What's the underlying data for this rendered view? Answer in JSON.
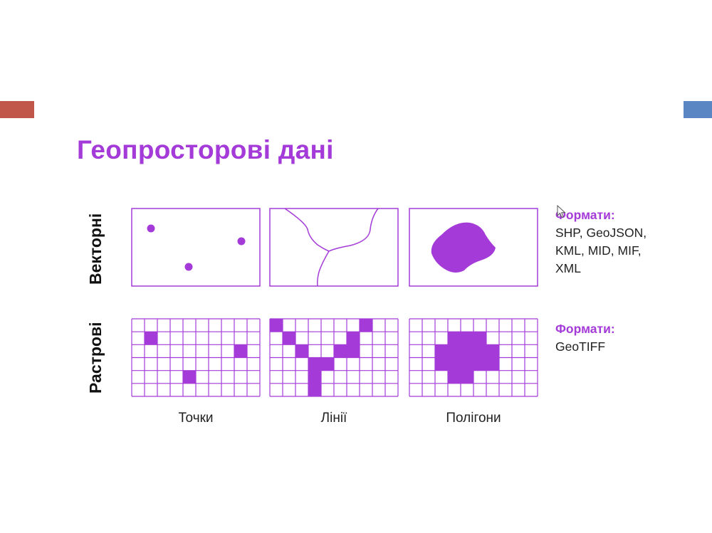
{
  "slide": {
    "title": "Геопросторові дані",
    "accent_colors": {
      "left": "#c0574a",
      "right": "#5b86c4",
      "brand": "#a43bd8"
    }
  },
  "rows": {
    "vector_label": "Векторні",
    "raster_label": "Растрові"
  },
  "columns": {
    "points_label": "Точки",
    "lines_label": "Лінії",
    "polygons_label": "Полігони"
  },
  "formats": {
    "vector": {
      "heading": "Формати:",
      "lines": [
        "SHP, GeoJSON,",
        "KML, MID, MIF,",
        "XML"
      ]
    },
    "raster": {
      "heading": "Формати:",
      "lines": [
        "GeoTIFF"
      ]
    }
  },
  "icons": {
    "cursor": "mouse-pointer-icon"
  }
}
